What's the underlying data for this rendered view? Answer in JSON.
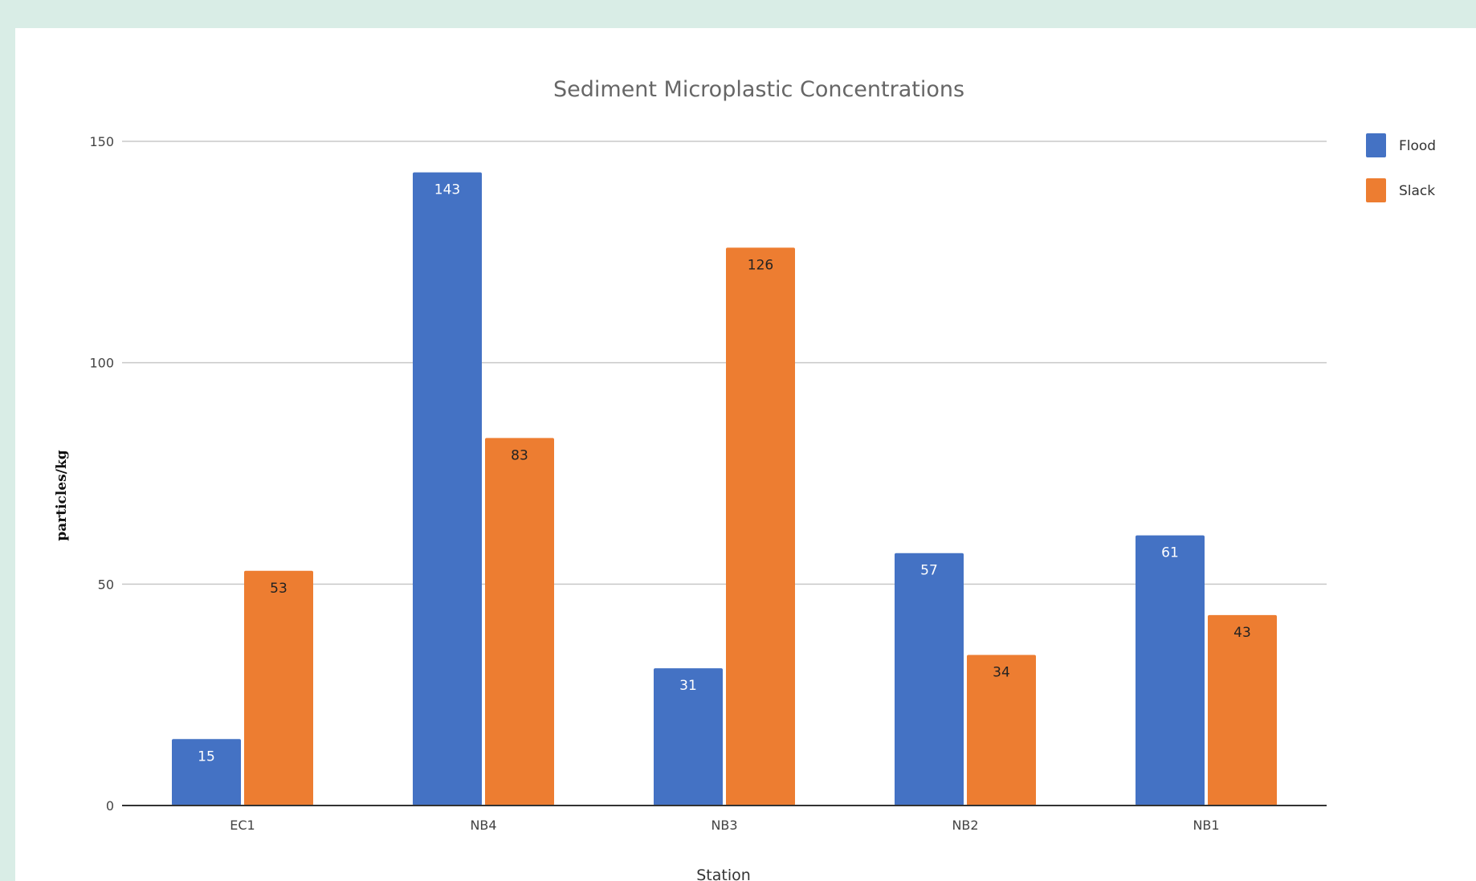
{
  "chart_data": {
    "type": "bar",
    "title": "Sediment Microplastic Concentrations",
    "xlabel": "Station",
    "ylabel": "particles/kg",
    "categories": [
      "EC1",
      "NB4",
      "NB3",
      "NB2",
      "NB1"
    ],
    "series": [
      {
        "name": "Flood",
        "color": "#4472c4",
        "label_color": "#ffffff",
        "values": [
          15,
          143,
          31,
          57,
          61
        ]
      },
      {
        "name": "Slack",
        "color": "#ed7d31",
        "label_color": "#222222",
        "values": [
          53,
          83,
          126,
          34,
          43
        ]
      }
    ],
    "ylim": [
      0,
      150
    ],
    "yticks": [
      0,
      50,
      100,
      150
    ],
    "grid": true,
    "legend": "top-right"
  }
}
